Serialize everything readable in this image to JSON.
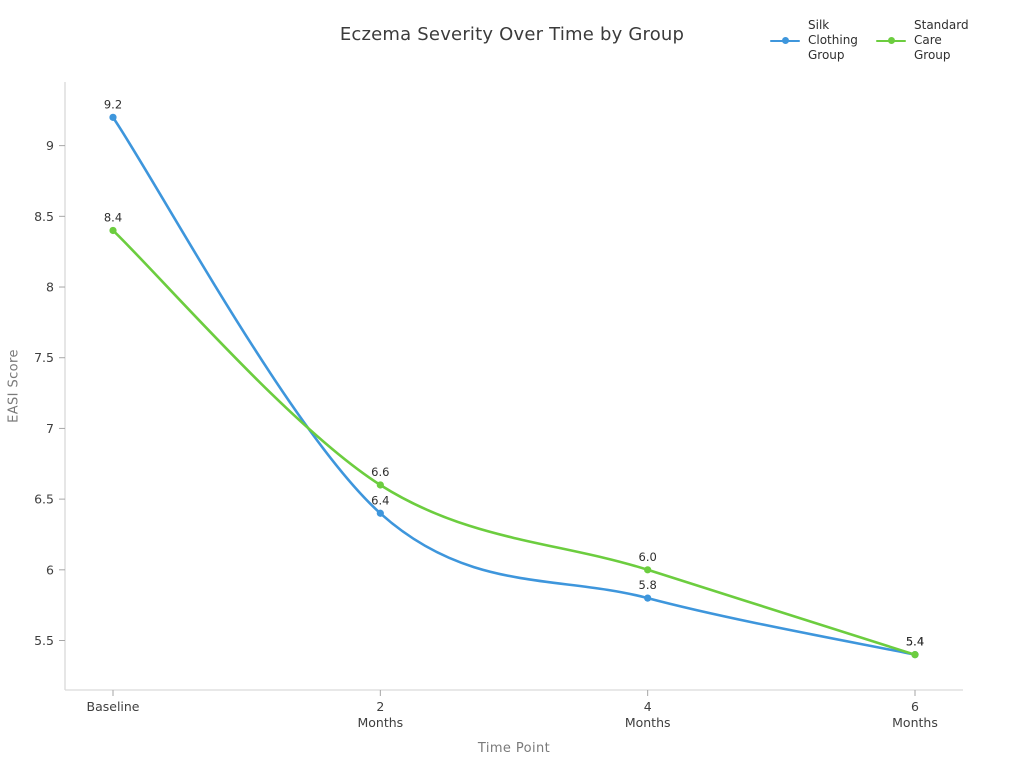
{
  "chart_data": {
    "type": "line",
    "title": "Eczema Severity Over Time by Group",
    "xlabel": "Time Point",
    "ylabel": "EASI Score",
    "categories": [
      "Baseline",
      "2 Months",
      "4 Months",
      "6 Months"
    ],
    "yticks": [
      5.5,
      6,
      6.5,
      7,
      7.5,
      8,
      8.5,
      9
    ],
    "ylim": [
      5.15,
      9.45
    ],
    "grid": false,
    "line_shape": "spline",
    "legend_position": "top-right",
    "series": [
      {
        "name": "Silk Clothing Group",
        "color": "#3E96DC",
        "values": [
          9.2,
          6.4,
          5.8,
          5.4
        ],
        "labels": [
          "9.2",
          "6.4",
          "5.8",
          "5.4"
        ]
      },
      {
        "name": "Standard Care Group",
        "color": "#6CCD3F",
        "values": [
          8.4,
          6.6,
          6.0,
          5.4
        ],
        "labels": [
          "8.4",
          "6.6",
          "6.0",
          "5.4"
        ]
      }
    ],
    "colors": {
      "axis_line": "#d9d9d9",
      "tick_mark": "#a6a6a6",
      "tick_label": "#3f3f3f",
      "axis_title": "#7a7a7a",
      "data_label": "#2e2e2e",
      "title": "#3b3b3b"
    }
  }
}
